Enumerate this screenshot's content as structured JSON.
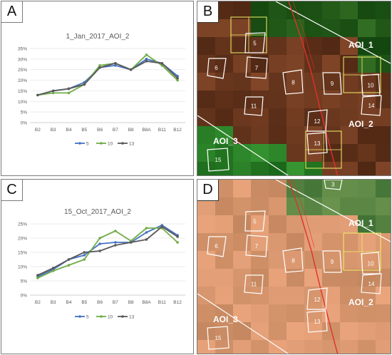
{
  "panels": {
    "a": {
      "letter": "A"
    },
    "b": {
      "letter": "B"
    },
    "c": {
      "letter": "C"
    },
    "d": {
      "letter": "D"
    }
  },
  "colors": {
    "series_5": "#4472c4",
    "series_10": "#70ad47",
    "series_13": "#595959",
    "polygon": "#ffffff",
    "aoi_box": "#f2f26b",
    "road": "#e0302a",
    "aoi_line": "#ffffff"
  },
  "chart_data": [
    {
      "type": "line",
      "title": "1_Jan_2017_AOI_2",
      "categories": [
        "B2",
        "B3",
        "B4",
        "B5",
        "B6",
        "B7",
        "B8",
        "B8A",
        "B11",
        "B12"
      ],
      "yticks": [
        "0%",
        "5%",
        "10%",
        "15%",
        "20%",
        "25%",
        "30%",
        "35%"
      ],
      "ylim": [
        0,
        35
      ],
      "legend_position": "bottom",
      "series": [
        {
          "name": "5",
          "color": "#4472c4",
          "values": [
            13,
            15,
            16,
            19,
            26,
            27,
            25,
            30,
            28,
            22
          ]
        },
        {
          "name": "10",
          "color": "#70ad47",
          "values": [
            13,
            14,
            14,
            18,
            27,
            28,
            25,
            32,
            27,
            20
          ]
        },
        {
          "name": "13",
          "color": "#595959",
          "values": [
            13,
            15,
            16,
            18,
            26,
            28,
            25,
            29,
            28,
            21
          ]
        }
      ]
    },
    {
      "type": "line",
      "title": "15_Oct_2017_AOI_2",
      "categories": [
        "B2",
        "B3",
        "B4",
        "B5",
        "B6",
        "B7",
        "B8",
        "B8A",
        "B11",
        "B12"
      ],
      "yticks": [
        "0%",
        "5%",
        "10%",
        "15%",
        "20%",
        "25%"
      ],
      "ylim": [
        0,
        25
      ],
      "legend_position": "bottom",
      "series": [
        {
          "name": "5",
          "color": "#4472c4",
          "values": [
            6.5,
            9,
            12.5,
            14,
            18,
            18.5,
            18.5,
            22,
            24.5,
            21
          ]
        },
        {
          "name": "10",
          "color": "#70ad47",
          "values": [
            6,
            8.5,
            10.5,
            12.5,
            20,
            22.5,
            19,
            23.5,
            23.5,
            18.5
          ]
        },
        {
          "name": "13",
          "color": "#595959",
          "values": [
            7,
            9.5,
            12.5,
            15,
            15.5,
            17.5,
            18.5,
            19.5,
            24,
            20.5
          ]
        }
      ]
    }
  ],
  "maps": {
    "b": {
      "polygon_labels": [
        "5",
        "6",
        "7",
        "8",
        "9",
        "10",
        "11",
        "12",
        "13",
        "14",
        "15"
      ],
      "aoi_labels": [
        "AOI_1",
        "AOI_2",
        "AOI_3"
      ]
    },
    "d": {
      "polygon_labels": [
        "3",
        "5",
        "6",
        "7",
        "8",
        "9",
        "10",
        "11",
        "12",
        "13",
        "14",
        "15"
      ],
      "aoi_labels": [
        "AOI_1",
        "AOI_2",
        "AOI_3"
      ]
    }
  }
}
